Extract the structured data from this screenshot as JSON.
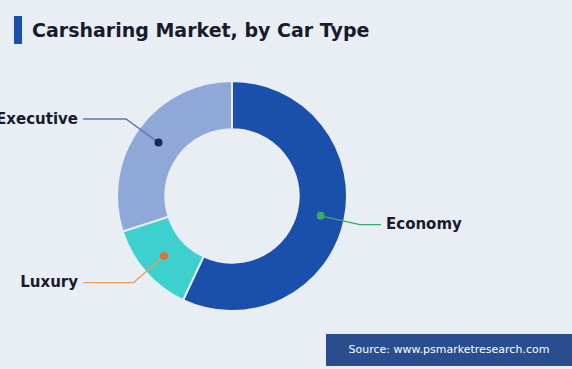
{
  "chart_data": {
    "type": "donut",
    "title": "Carsharing Market, by Car Type",
    "categories": [
      "Economy",
      "Luxury",
      "Executive"
    ],
    "values": [
      57,
      13,
      30
    ],
    "colors": [
      "#1b4fac",
      "#3ecfcf",
      "#8fa8d8"
    ],
    "source": "Source: www.psmarketresearch.com"
  }
}
